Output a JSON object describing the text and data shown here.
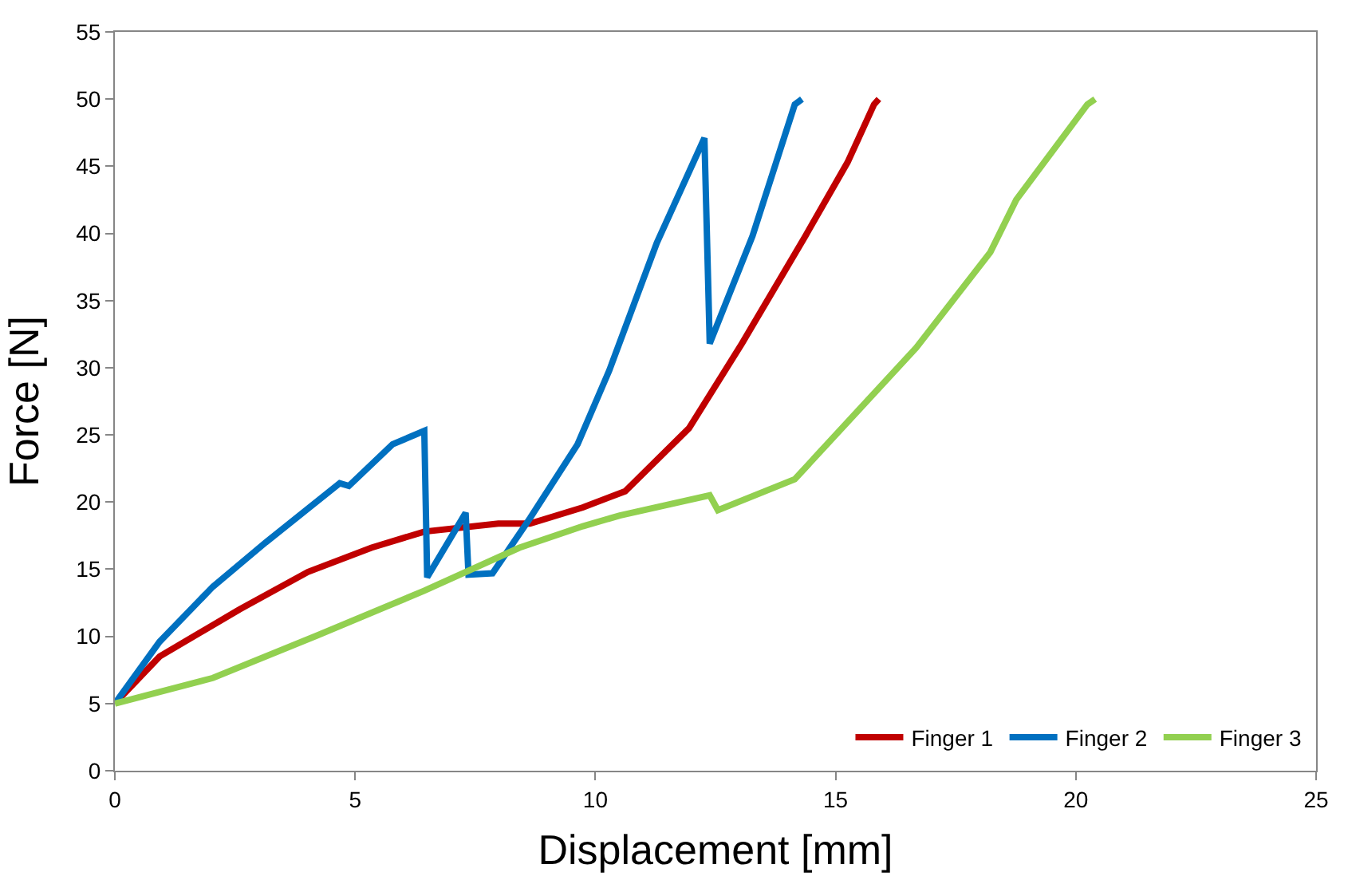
{
  "chart_data": {
    "type": "line",
    "xlabel": "Displacement [mm]",
    "ylabel": "Force [N]",
    "xlim": [
      0,
      25
    ],
    "ylim": [
      0,
      55
    ],
    "xticks": [
      0,
      5,
      10,
      15,
      20,
      25
    ],
    "yticks": [
      0,
      5,
      10,
      15,
      20,
      25,
      30,
      35,
      40,
      45,
      50,
      55
    ],
    "grid": false,
    "legend": "bottom right",
    "marker": "none",
    "line_style": "solid",
    "series": [
      {
        "name": "Finger 1",
        "color": "#c00000",
        "x": [
          0,
          0.93,
          2.59,
          4.02,
          5.34,
          6.44,
          7.98,
          8.64,
          9.74,
          10.62,
          11.95,
          13.05,
          14.37,
          15.25,
          15.8,
          15.9
        ],
        "values": [
          5,
          8.5,
          12,
          14.8,
          16.6,
          17.8,
          18.4,
          18.4,
          19.6,
          20.8,
          25.5,
          31.8,
          39.8,
          45.3,
          49.6,
          50
        ]
      },
      {
        "name": "Finger 2",
        "color": "#0070c0",
        "x": [
          0,
          0.93,
          2.04,
          3.14,
          4.68,
          4.87,
          5.78,
          6.44,
          6.5,
          7.3,
          7.36,
          7.86,
          8.64,
          9.63,
          10.29,
          11.28,
          12.27,
          12.38,
          13.27,
          14.15,
          14.3
        ],
        "values": [
          5,
          9.6,
          13.7,
          17,
          21.4,
          21.2,
          24.3,
          25.3,
          14.4,
          19.2,
          14.6,
          14.7,
          18.8,
          24.3,
          29.8,
          39.3,
          47.1,
          31.8,
          39.8,
          49.6,
          50
        ]
      },
      {
        "name": "Finger 3",
        "color": "#92d050",
        "x": [
          0,
          2.04,
          4.23,
          6.44,
          8.42,
          9.74,
          10.51,
          12.38,
          12.55,
          14.15,
          16.68,
          18.22,
          18.76,
          20.24,
          20.4
        ],
        "values": [
          5,
          6.9,
          10.1,
          13.4,
          16.6,
          18.2,
          19,
          20.5,
          19.4,
          21.7,
          31.5,
          38.6,
          42.5,
          49.6,
          50
        ]
      }
    ]
  }
}
